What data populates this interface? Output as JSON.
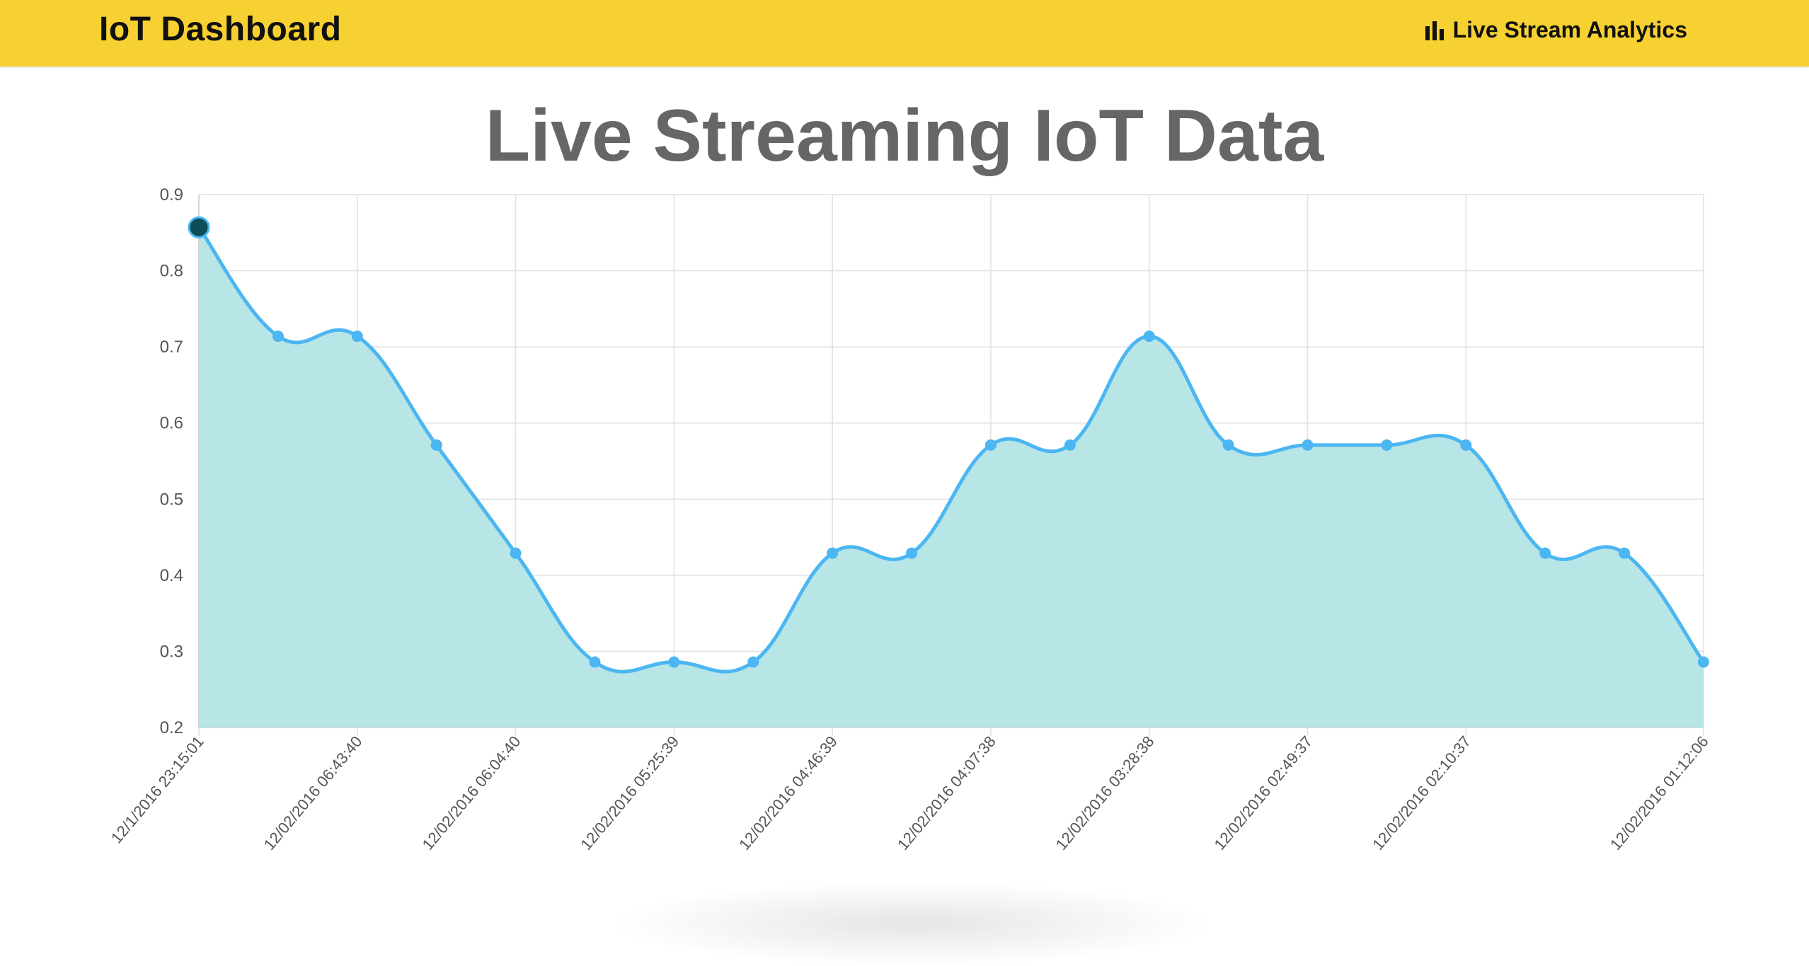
{
  "navbar": {
    "brand": "IoT Dashboard",
    "link_label": "Live Stream Analytics",
    "link_icon": "bar-chart-icon"
  },
  "page": {
    "title": "Live Streaming IoT Data"
  },
  "colors": {
    "navbar_bg": "#f6d131",
    "line": "#4bb6f2",
    "fill": "#b8e5e6",
    "highlight_point": "#0d4d57",
    "grid": "#e0e0e0"
  },
  "chart_data": {
    "type": "area",
    "title": "",
    "xlabel": "",
    "ylabel": "",
    "ylim": [
      0.2,
      0.9
    ],
    "yticks": [
      "0.9",
      "0.8",
      "0.7",
      "0.6",
      "0.5",
      "0.4",
      "0.3",
      "0.2"
    ],
    "grid": true,
    "smooth": true,
    "x_tick_labels": [
      "12/1/2016 23:15:01",
      "12/02/2016 06:43:40",
      "12/02/2016 06:04:40",
      "12/02/2016 05:25:39",
      "12/02/2016 04:46:39",
      "12/02/2016 04:07:38",
      "12/02/2016 03:28:38",
      "12/02/2016 02:49:37",
      "12/02/2016 02:10:37",
      "12/02/2016 01:12:06"
    ],
    "x_tick_positions": [
      0,
      2,
      4,
      6,
      8,
      10,
      12,
      14,
      16,
      19
    ],
    "values": [
      0.857,
      0.714,
      0.714,
      0.571,
      0.429,
      0.286,
      0.286,
      0.286,
      0.429,
      0.429,
      0.571,
      0.571,
      0.714,
      0.571,
      0.571,
      0.571,
      0.571,
      0.429,
      0.429,
      0.286
    ],
    "highlighted_index": 0
  }
}
